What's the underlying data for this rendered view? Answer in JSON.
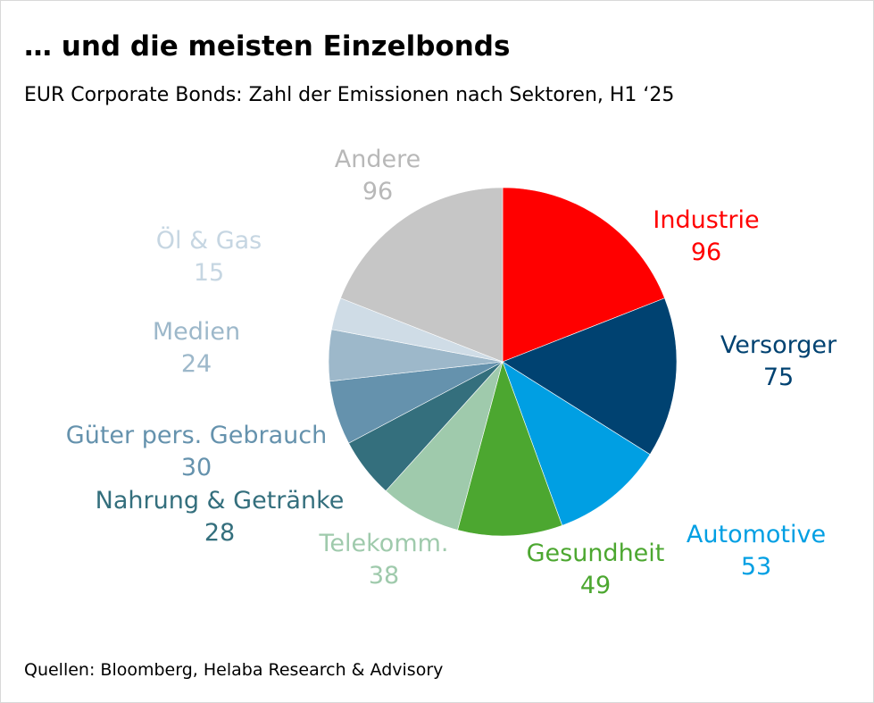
{
  "title": "… und die meisten Einzelbonds",
  "subtitle": "EUR Corporate Bonds: Zahl der Emissionen nach Sektoren, H1 ‘25",
  "source": "Quellen: Bloomberg, Helaba Research & Advisory",
  "chart_data": {
    "type": "pie",
    "title": "… und die meisten Einzelbonds",
    "subtitle": "EUR Corporate Bonds: Zahl der Emissionen nach Sektoren, H1 ‘25",
    "slices": [
      {
        "name": "Industrie",
        "value": 96,
        "color": "#ff0000",
        "value_label": "96"
      },
      {
        "name": "Versorger",
        "value": 75,
        "color": "#004271",
        "value_label": "75"
      },
      {
        "name": "Automotive",
        "value": 53,
        "color": "#009fe3",
        "value_label": "53"
      },
      {
        "name": "Gesundheit",
        "value": 49,
        "color": "#4ca730",
        "value_label": "49"
      },
      {
        "name": "Telekomm.",
        "value": 38,
        "color": "#9fcaac",
        "value_label": "38"
      },
      {
        "name": "Nahrung & Getränke",
        "value": 28,
        "color": "#346f7d",
        "value_label": "28"
      },
      {
        "name": "Güter pers. Gebrauch",
        "value": 30,
        "color": "#6592ad",
        "value_label": "30"
      },
      {
        "name": "Medien",
        "value": 24,
        "color": "#9db8ca",
        "value_label": "24"
      },
      {
        "name": "Öl & Gas",
        "value": 15,
        "color": "#cfdce6",
        "value_label": "15"
      },
      {
        "name": "Andere",
        "value": 96,
        "color": "#c6c6c6",
        "value_label": "96"
      }
    ],
    "label_colors": {
      "Öl & Gas": "#c6d6e2",
      "Medien": "#9db8ca",
      "Andere": "#b8b8b8"
    }
  }
}
